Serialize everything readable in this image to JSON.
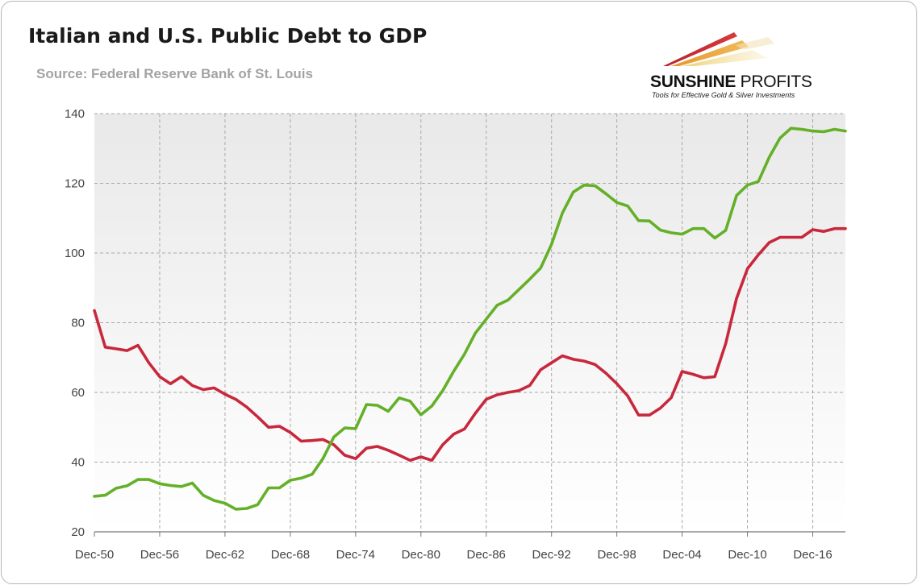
{
  "header": {
    "title": "Italian and U.S. Public Debt to GDP",
    "subtitle": "Source: Federal Reserve Bank of St. Louis"
  },
  "logo": {
    "name_bold": "SUNSHINE",
    "name_regular": " PROFITS",
    "tagline": "Tools for Effective Gold & Silver Investments"
  },
  "chart_data": {
    "type": "line",
    "title": "Italian and U.S. Public Debt to GDP",
    "xlabel": "",
    "ylabel": "",
    "ylim": [
      20,
      140
    ],
    "xlim": [
      1950,
      2019
    ],
    "y_ticks": [
      20,
      40,
      60,
      80,
      100,
      120,
      140
    ],
    "x_ticks": [
      {
        "label": "Dec-50",
        "x": 1950
      },
      {
        "label": "Dec-56",
        "x": 1956
      },
      {
        "label": "Dec-62",
        "x": 1962
      },
      {
        "label": "Dec-68",
        "x": 1968
      },
      {
        "label": "Dec-74",
        "x": 1974
      },
      {
        "label": "Dec-80",
        "x": 1980
      },
      {
        "label": "Dec-86",
        "x": 1986
      },
      {
        "label": "Dec-92",
        "x": 1992
      },
      {
        "label": "Dec-98",
        "x": 1998
      },
      {
        "label": "Dec-04",
        "x": 2004
      },
      {
        "label": "Dec-10",
        "x": 2010
      },
      {
        "label": "Dec-16",
        "x": 2016
      }
    ],
    "grid": "dashed",
    "legend": "none",
    "x": [
      1950,
      1951,
      1952,
      1953,
      1954,
      1955,
      1956,
      1957,
      1958,
      1959,
      1960,
      1961,
      1962,
      1963,
      1964,
      1965,
      1966,
      1967,
      1968,
      1969,
      1970,
      1971,
      1972,
      1973,
      1974,
      1975,
      1976,
      1977,
      1978,
      1979,
      1980,
      1981,
      1982,
      1983,
      1984,
      1985,
      1986,
      1987,
      1988,
      1989,
      1990,
      1991,
      1992,
      1993,
      1994,
      1995,
      1996,
      1997,
      1998,
      1999,
      2000,
      2001,
      2002,
      2003,
      2004,
      2005,
      2006,
      2007,
      2008,
      2009,
      2010,
      2011,
      2012,
      2013,
      2014,
      2015,
      2016,
      2017,
      2018,
      2019
    ],
    "series": [
      {
        "color": "#c8283c",
        "values": [
          83.5,
          73,
          72.5,
          72,
          73.5,
          68.5,
          64.5,
          62.5,
          64.5,
          62,
          60.8,
          61.3,
          59.5,
          58,
          55.8,
          53,
          50,
          50.3,
          48.5,
          46,
          46.2,
          46.5,
          45,
          42,
          41,
          44,
          44.5,
          43.4,
          42,
          40.5,
          41.5,
          40.5,
          45,
          48,
          49.5,
          54,
          58,
          59.3,
          60,
          60.5,
          62,
          66.5,
          68.5,
          70.5,
          69.5,
          69,
          68,
          65.5,
          62.5,
          59,
          53.5,
          53.5,
          55.5,
          58.5,
          66,
          65.2,
          64.2,
          64.5,
          74,
          87,
          95.5,
          99.5,
          103,
          104.5,
          104.5,
          104.5,
          106.7,
          106.2,
          107,
          107
        ]
      },
      {
        "color": "#64b028",
        "values": [
          30.2,
          30.5,
          32.5,
          33.2,
          35,
          35,
          33.8,
          33.3,
          33,
          34,
          30.5,
          29,
          28.2,
          26.5,
          26.7,
          27.8,
          32.6,
          32.6,
          34.8,
          35.4,
          36.5,
          41,
          47.2,
          49.8,
          49.6,
          56.5,
          56.3,
          54.6,
          58.4,
          57.5,
          53.6,
          56.1,
          60.5,
          66,
          71,
          77,
          81,
          85,
          86.5,
          89.5,
          92.5,
          95.7,
          102.5,
          111.5,
          117.5,
          119.5,
          119.3,
          117,
          114.5,
          113.5,
          109.3,
          109.2,
          106.6,
          105.8,
          105.4,
          107,
          107,
          104.3,
          106.5,
          116.5,
          119.5,
          120.5,
          127.5,
          133,
          135.8,
          135.5,
          135,
          134.8,
          135.5,
          135
        ]
      }
    ]
  }
}
